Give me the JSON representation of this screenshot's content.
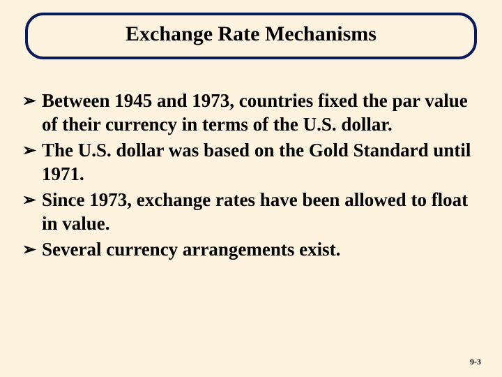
{
  "slide": {
    "background_color": "#fdf3df",
    "text_color": "#000000",
    "title_box": {
      "border_color": "#0a1a5c",
      "background_color": "#fdf3df",
      "text": "Exchange Rate Mechanisms"
    },
    "bullets": [
      "Between 1945 and 1973, countries fixed the par value of their currency in terms of the U.S. dollar.",
      "The U.S. dollar was based on the Gold Standard until 1971.",
      "Since 1973, exchange rates have been allowed to float in value.",
      "Several currency arrangements exist."
    ],
    "bullet_glyph": "➢",
    "page_number": "9-3"
  }
}
